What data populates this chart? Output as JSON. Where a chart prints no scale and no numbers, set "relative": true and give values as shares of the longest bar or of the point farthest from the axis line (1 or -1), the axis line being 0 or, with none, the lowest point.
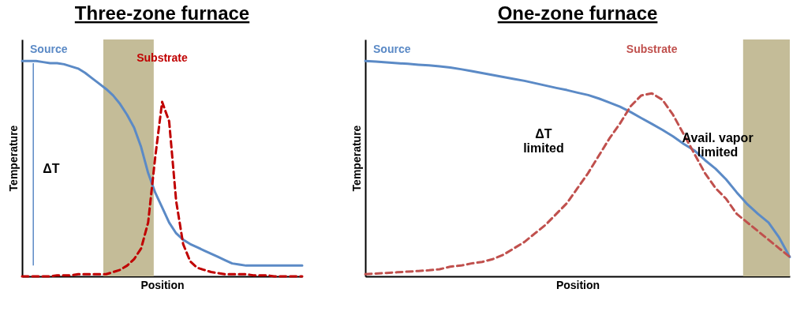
{
  "chart_data": [
    {
      "type": "line",
      "title": "Three-zone furnace",
      "xlabel": "Position",
      "ylabel": "Temperature",
      "relative": true,
      "marker": "none",
      "categories": [
        null,
        null,
        null,
        null,
        null,
        null,
        null,
        null,
        null,
        null,
        null,
        null,
        null,
        null,
        null,
        null,
        null,
        null,
        null,
        null,
        null,
        null,
        null,
        null,
        null,
        null,
        null,
        null,
        null,
        null,
        null,
        null,
        null,
        null,
        null,
        null,
        null,
        null,
        null,
        null,
        null
      ],
      "series": [
        {
          "name": "Source",
          "color": "#5b8ac6",
          "line_style": "solid",
          "values": [
            1.0,
            1.0,
            1.0,
            0.995,
            0.99,
            0.99,
            0.985,
            0.975,
            0.965,
            0.945,
            0.92,
            0.895,
            0.87,
            0.84,
            0.8,
            0.75,
            0.69,
            0.6,
            0.48,
            0.39,
            0.32,
            0.25,
            0.2,
            0.17,
            0.15,
            0.135,
            0.12,
            0.105,
            0.09,
            0.075,
            0.06,
            0.055,
            0.05,
            0.05,
            0.05,
            0.05,
            0.05,
            0.05,
            0.05,
            0.05,
            0.05
          ]
        },
        {
          "name": "Substrate",
          "color": "#c00000",
          "line_style": "dashed",
          "values": [
            0,
            0,
            0,
            0,
            0,
            0.005,
            0.005,
            0.005,
            0.01,
            0.01,
            0.01,
            0.01,
            0.01,
            0.02,
            0.03,
            0.05,
            0.08,
            0.13,
            0.25,
            0.55,
            0.81,
            0.72,
            0.35,
            0.15,
            0.07,
            0.04,
            0.03,
            0.02,
            0.015,
            0.01,
            0.01,
            0.01,
            0.01,
            0.005,
            0.005,
            0.005,
            0,
            0,
            0,
            0,
            0
          ]
        }
      ],
      "annotations": [
        "ΔT"
      ]
    },
    {
      "type": "line",
      "title": "One-zone furnace",
      "xlabel": "Position",
      "ylabel": "Temperature",
      "relative": true,
      "marker": "none",
      "categories": [
        null,
        null,
        null,
        null,
        null,
        null,
        null,
        null,
        null,
        null,
        null,
        null,
        null,
        null,
        null,
        null,
        null,
        null,
        null,
        null,
        null,
        null,
        null,
        null,
        null,
        null,
        null,
        null,
        null,
        null,
        null,
        null,
        null,
        null,
        null,
        null,
        null,
        null,
        null,
        null,
        null
      ],
      "series": [
        {
          "name": "Source",
          "color": "#5b8ac6",
          "line_style": "solid",
          "values": [
            1.0,
            0.997,
            0.994,
            0.99,
            0.987,
            0.983,
            0.98,
            0.975,
            0.97,
            0.962,
            0.953,
            0.944,
            0.935,
            0.926,
            0.917,
            0.908,
            0.897,
            0.886,
            0.875,
            0.865,
            0.853,
            0.842,
            0.826,
            0.807,
            0.788,
            0.763,
            0.735,
            0.708,
            0.68,
            0.65,
            0.615,
            0.585,
            0.54,
            0.5,
            0.45,
            0.39,
            0.335,
            0.29,
            0.25,
            0.18,
            0.09
          ]
        },
        {
          "name": "Substrate",
          "color": "#c0504d",
          "line_style": "dashed",
          "values": [
            0.01,
            0.013,
            0.016,
            0.019,
            0.022,
            0.025,
            0.028,
            0.033,
            0.045,
            0.05,
            0.06,
            0.067,
            0.08,
            0.1,
            0.13,
            0.16,
            0.2,
            0.24,
            0.29,
            0.34,
            0.41,
            0.48,
            0.56,
            0.64,
            0.71,
            0.79,
            0.84,
            0.85,
            0.82,
            0.75,
            0.66,
            0.57,
            0.48,
            0.41,
            0.36,
            0.29,
            0.25,
            0.21,
            0.17,
            0.13,
            0.09
          ]
        }
      ],
      "annotations": [
        "ΔT\nlimited",
        "Avail. vapor\nlimited"
      ]
    }
  ]
}
